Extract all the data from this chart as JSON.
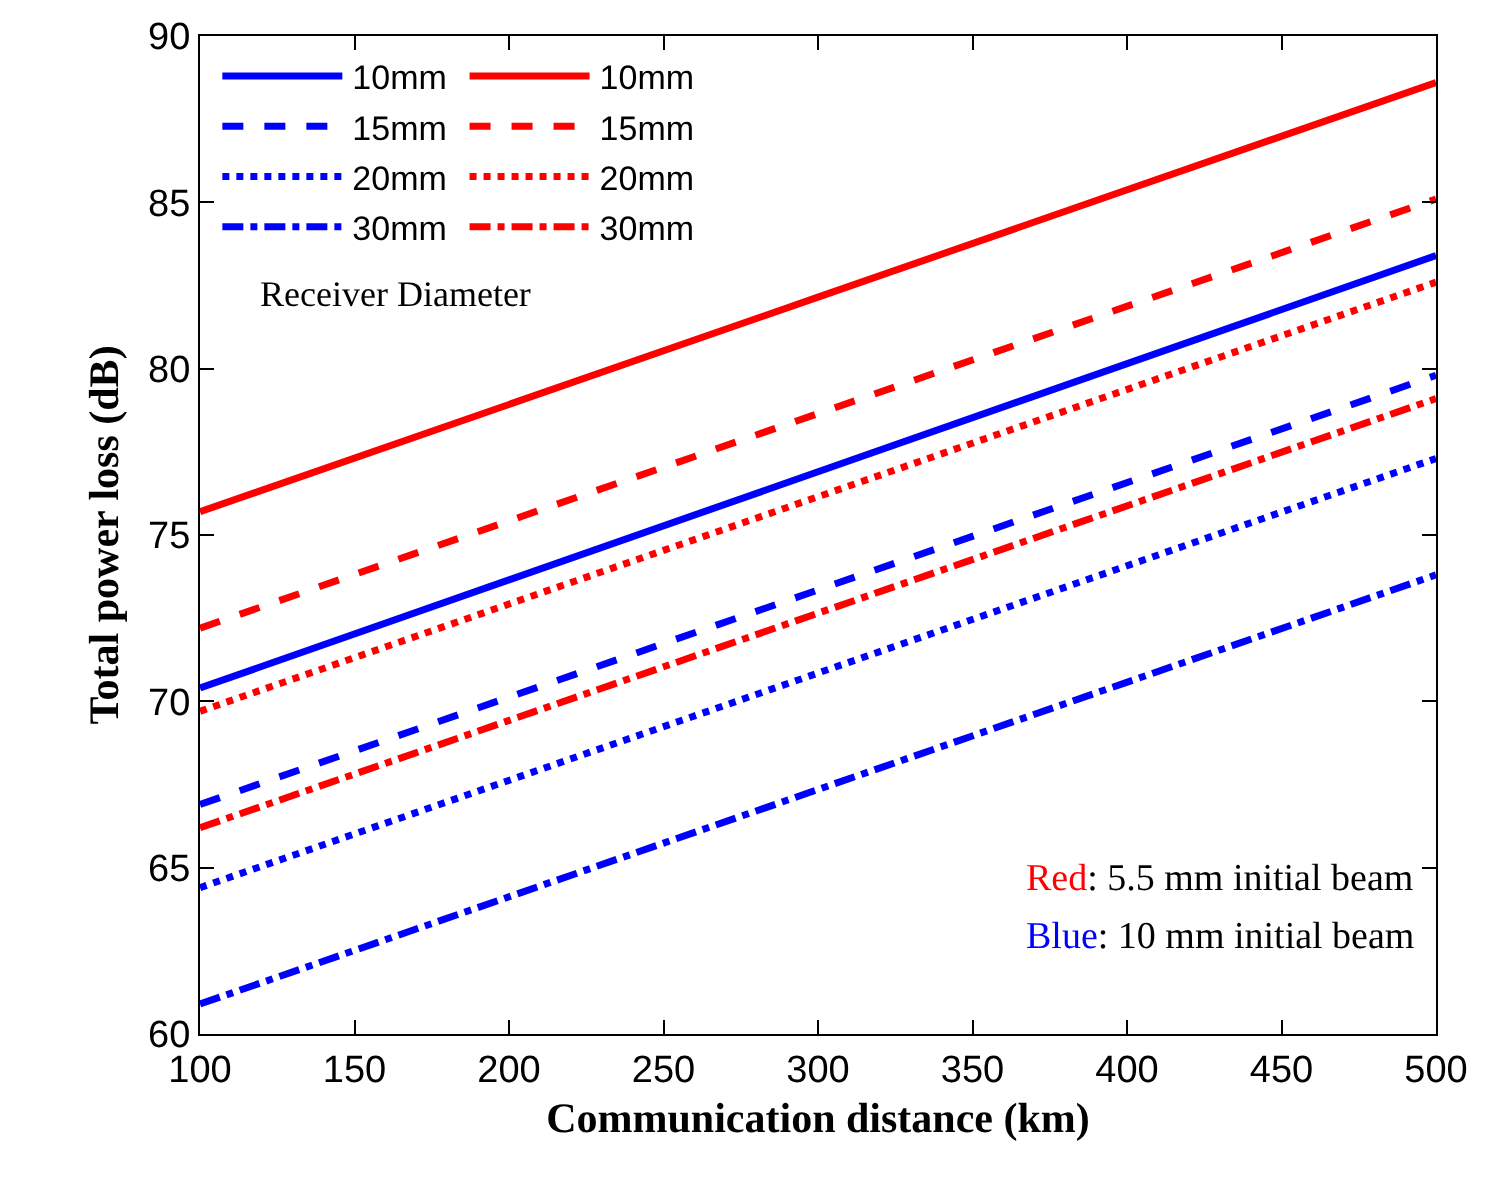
{
  "chart_data": {
    "type": "line",
    "xlabel": "Communication distance (km)",
    "ylabel": "Total power loss (dB)",
    "legend_title": "Receiver Diameter",
    "legend": "top left",
    "grid": false,
    "marker": "none",
    "x": [
      100,
      300,
      500
    ],
    "xlim": [
      100,
      500
    ],
    "xticks": [
      100,
      150,
      200,
      250,
      300,
      350,
      400,
      450,
      500
    ],
    "ylim": [
      60,
      90
    ],
    "yticks": [
      60,
      65,
      70,
      75,
      80,
      85,
      90
    ],
    "series": [
      {
        "name": "10mm",
        "color": "#0000ff",
        "line_style": "solid",
        "values": [
          70.4,
          76.9,
          83.4
        ]
      },
      {
        "name": "15mm",
        "color": "#0000ff",
        "line_style": "dashed",
        "values": [
          66.9,
          73.35,
          79.8
        ]
      },
      {
        "name": "20mm",
        "color": "#0000ff",
        "line_style": "dotted",
        "values": [
          64.4,
          70.85,
          77.3
        ]
      },
      {
        "name": "30mm",
        "color": "#0000ff",
        "line_style": "dashdot",
        "values": [
          60.9,
          67.35,
          73.8
        ]
      },
      {
        "name": "10mm",
        "color": "#ff0000",
        "line_style": "solid",
        "values": [
          75.7,
          82.15,
          88.6
        ]
      },
      {
        "name": "15mm",
        "color": "#ff0000",
        "line_style": "dashed",
        "values": [
          72.2,
          78.65,
          85.1
        ]
      },
      {
        "name": "20mm",
        "color": "#ff0000",
        "line_style": "dotted",
        "values": [
          69.7,
          76.15,
          82.6
        ]
      },
      {
        "name": "30mm",
        "color": "#ff0000",
        "line_style": "dashdot",
        "values": [
          66.2,
          72.65,
          79.1
        ]
      }
    ],
    "annotations": [
      "Red: 5.5 mm initial beam",
      "Blue: 10 mm initial beam"
    ]
  }
}
